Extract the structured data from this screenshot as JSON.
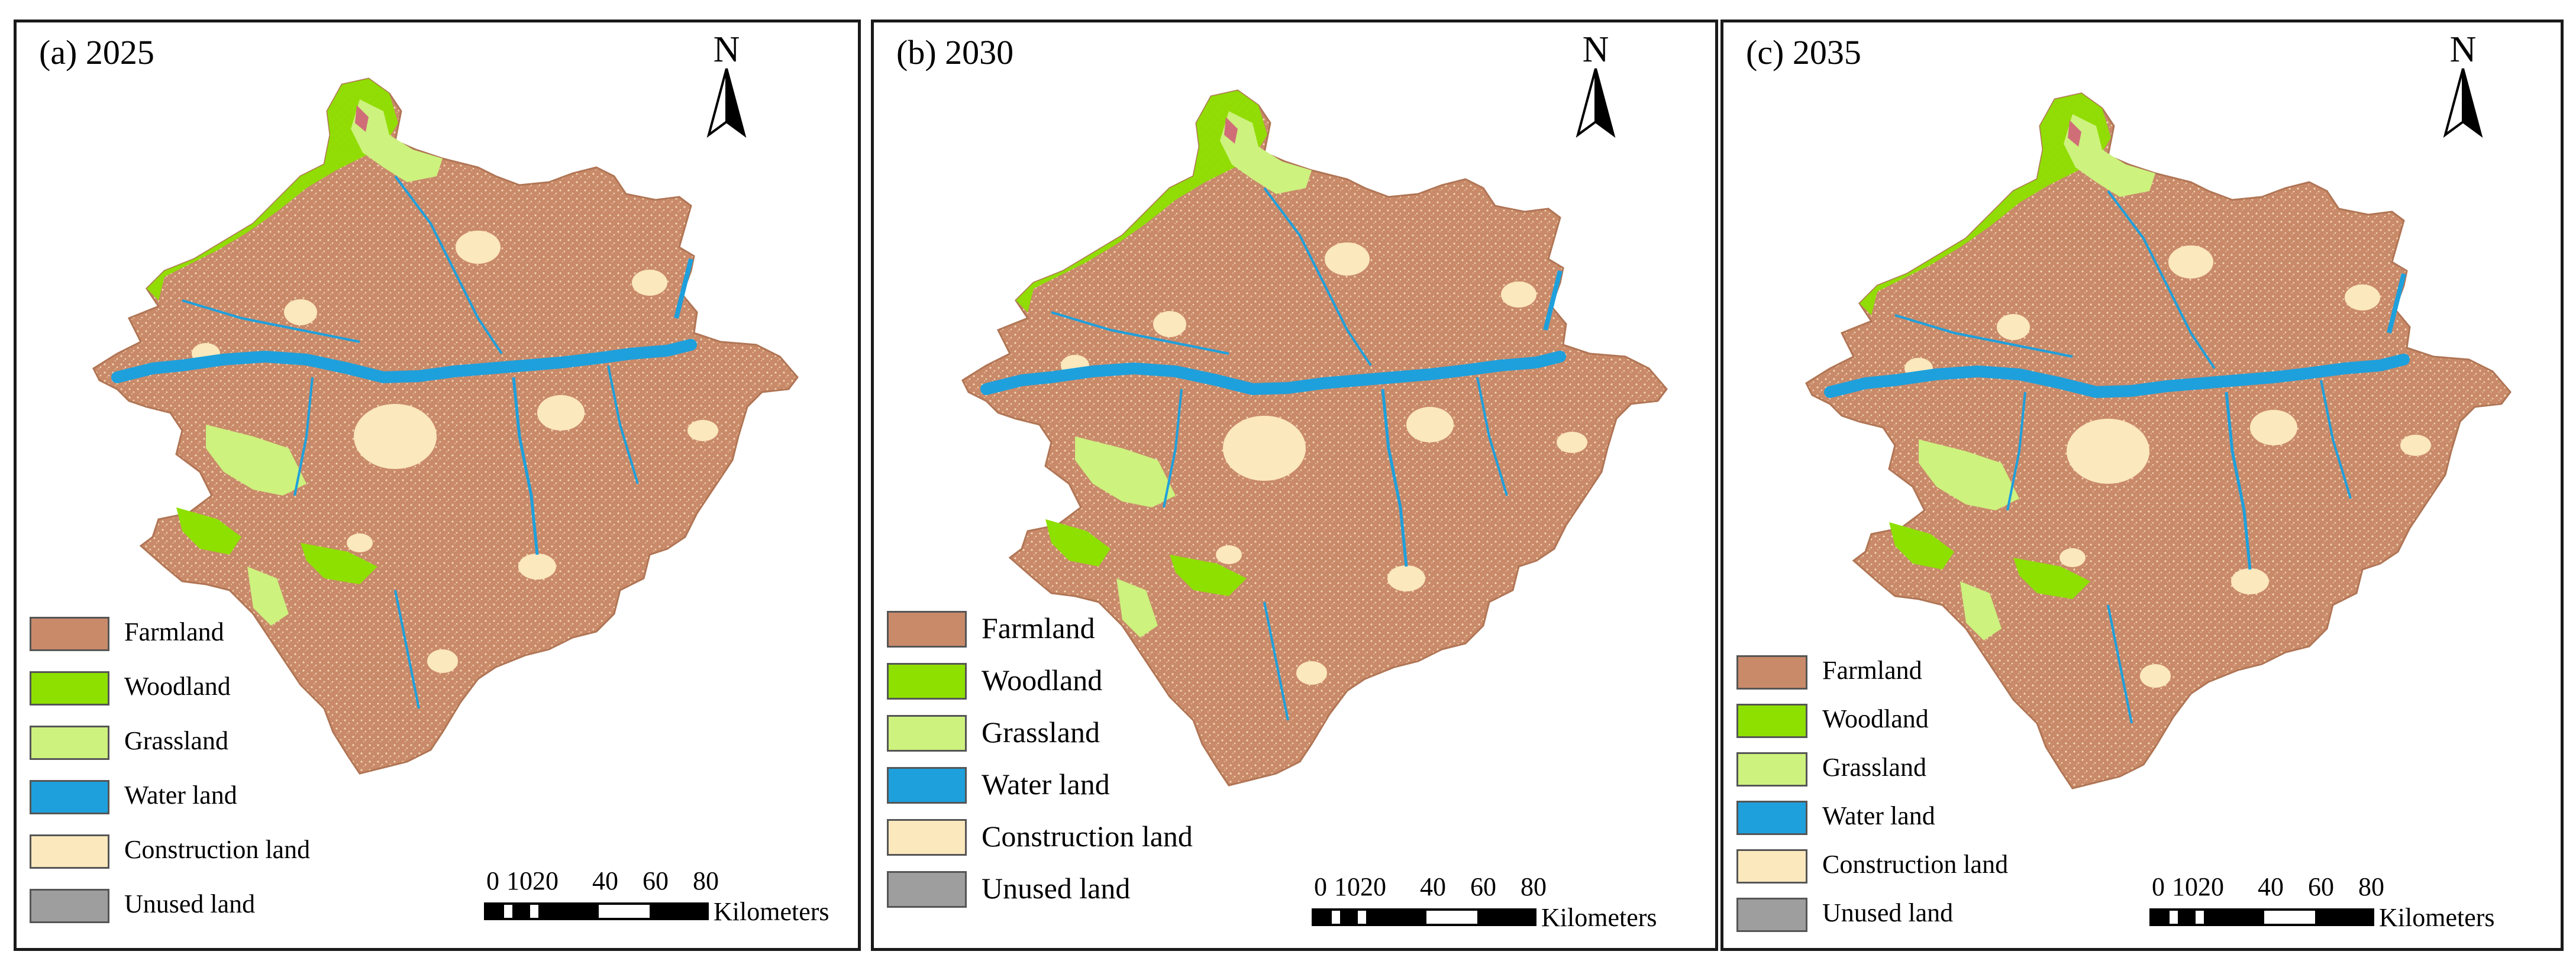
{
  "legend_colors": {
    "farmland": "#c98a6a",
    "woodland": "#8ee000",
    "grassland": "#cdf27e",
    "water": "#1ea0dc",
    "construction": "#fbe8bd",
    "unused": "#9e9e9e"
  },
  "north_label": "N",
  "scale": {
    "ticks": [
      "0",
      "1020",
      "40",
      "60",
      "80"
    ],
    "unit": "Kilometers"
  },
  "legend_items": [
    {
      "label": "Farmland",
      "color": "#c98a6a"
    },
    {
      "label": "Woodland",
      "color": "#8ee000"
    },
    {
      "label": "Grassland",
      "color": "#cdf27e"
    },
    {
      "label": "Water land",
      "color": "#1ea0dc"
    },
    {
      "label": "Construction land",
      "color": "#fbe8bd"
    },
    {
      "label": "Unused land",
      "color": "#9e9e9e"
    }
  ],
  "panels": [
    {
      "title": "(a) 2025"
    },
    {
      "title": "(b) 2030"
    },
    {
      "title": "(c) 2035"
    }
  ]
}
